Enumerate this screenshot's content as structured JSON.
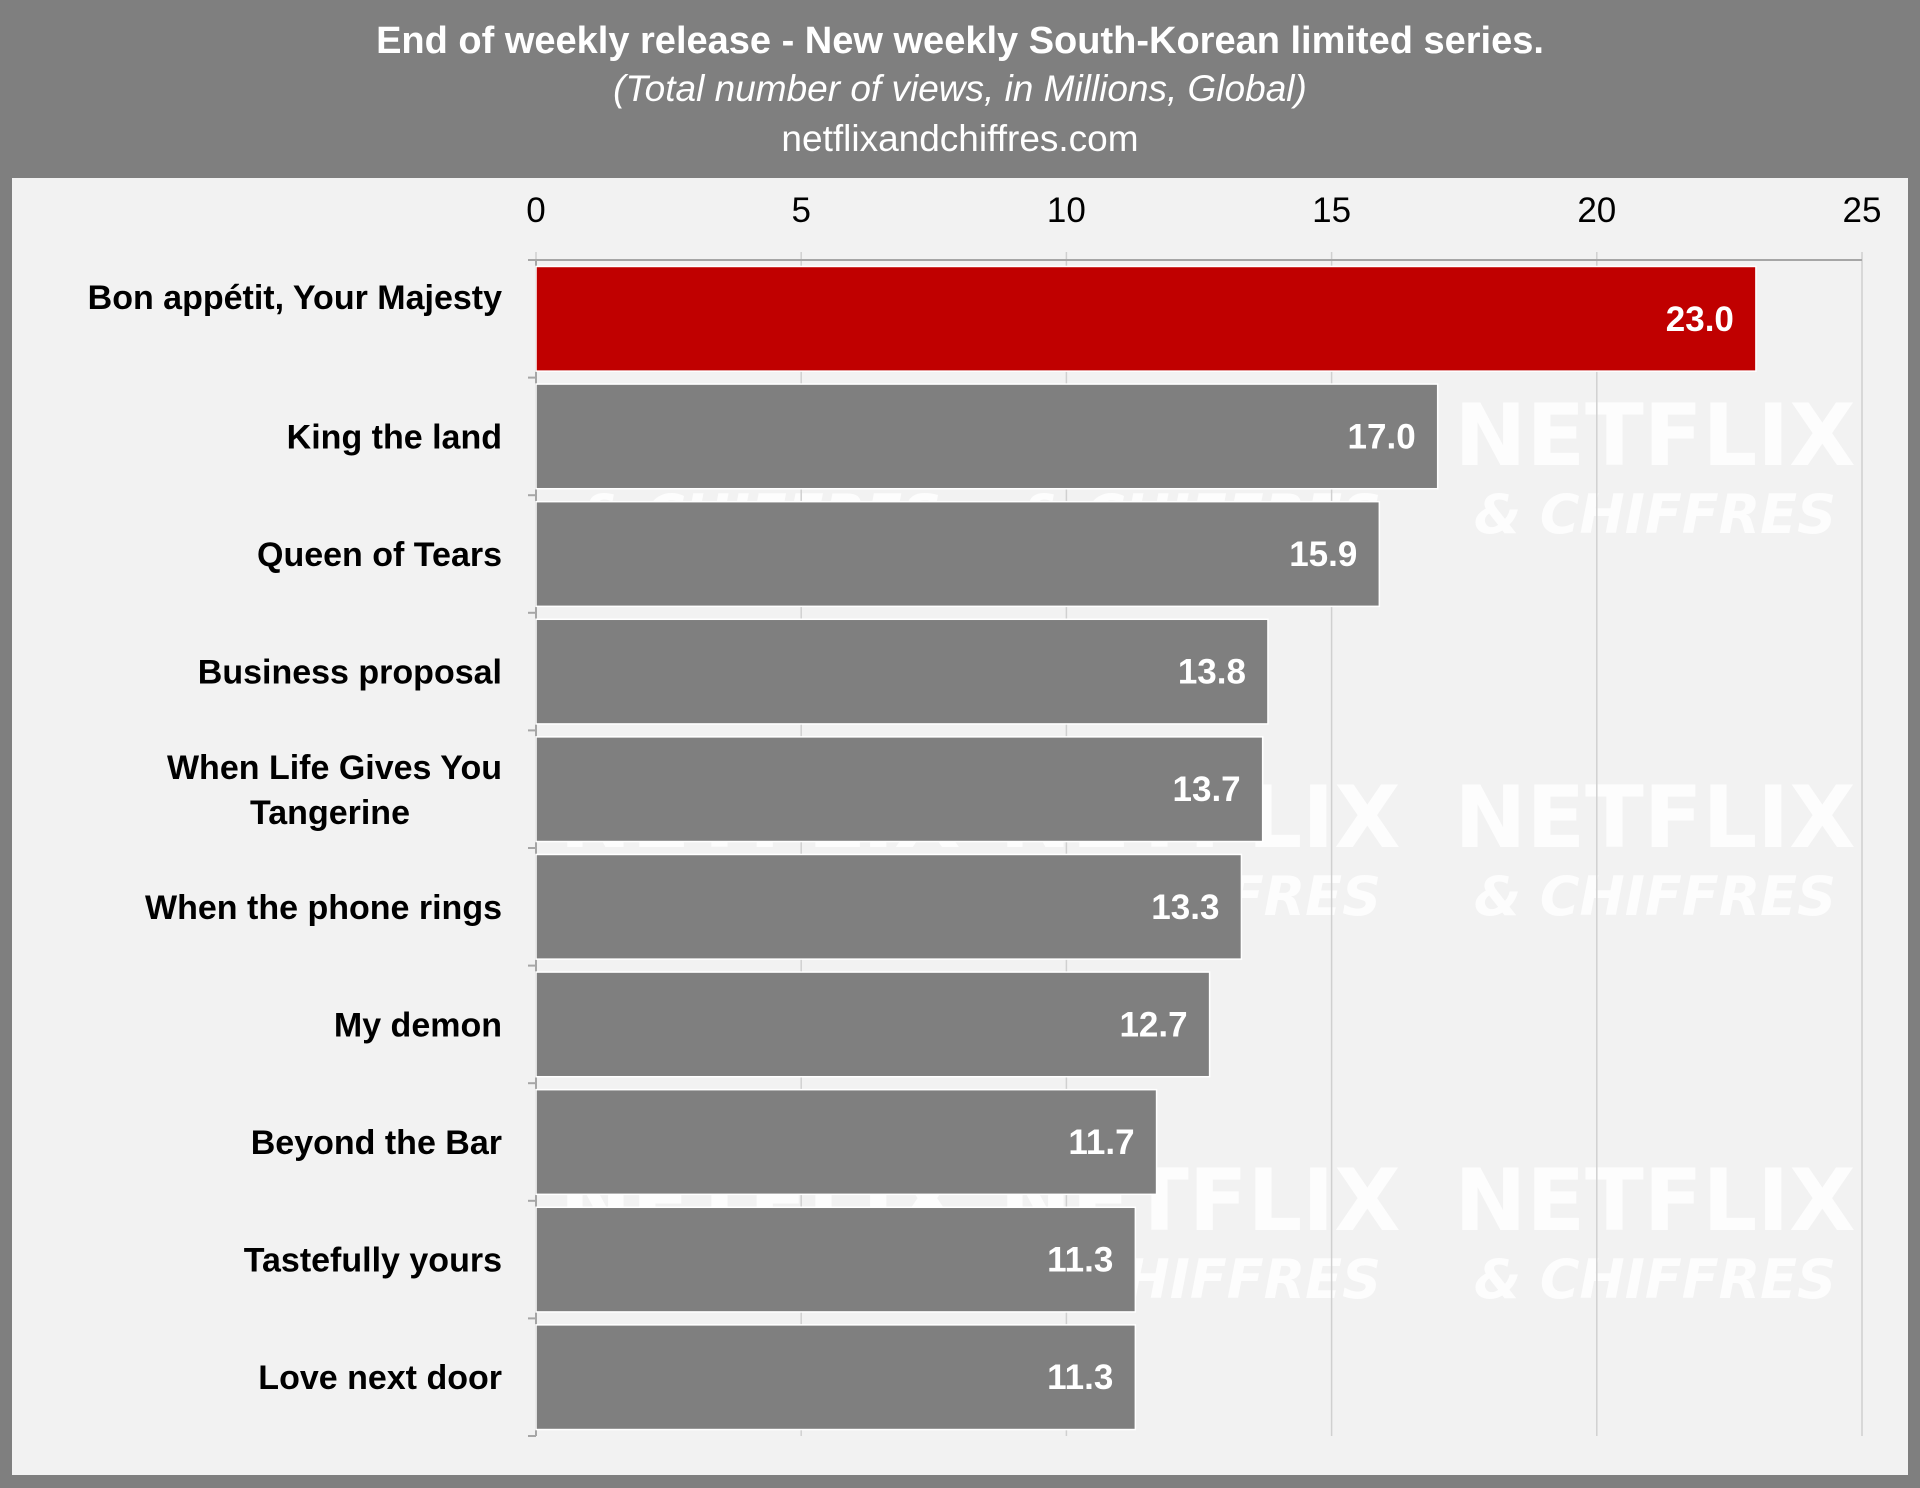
{
  "header": {
    "title": "End of weekly release - New weekly South-Korean limited series.",
    "subtitle": "(Total number of views, in Millions, Global)",
    "source": "netflixandchiffres.com"
  },
  "watermark": {
    "line1": "NETFLIX",
    "line2": "& CHIFFRES"
  },
  "colors": {
    "highlight": "#c00000",
    "bar": "#7f7f7f",
    "header": "#7f7f7f",
    "panel": "#f2f2f2"
  },
  "chart_data": {
    "type": "bar",
    "orientation": "horizontal",
    "title": "End of weekly release - New weekly South-Korean limited series.",
    "subtitle": "(Total number of views, in Millions, Global)",
    "xlabel": "",
    "ylabel": "",
    "xlim": [
      0,
      25
    ],
    "xticks": [
      0,
      5,
      10,
      15,
      20,
      25
    ],
    "grid": true,
    "axis_position": "top",
    "categories": [
      "Bon appétit, Your Majesty",
      "King the land",
      "Queen of Tears",
      "Business proposal",
      "When Life Gives You Tangerine",
      "When the phone rings",
      "My demon",
      "Beyond the Bar",
      "Tastefully yours",
      "Love next door"
    ],
    "values": [
      23.0,
      17.0,
      15.9,
      13.8,
      13.7,
      13.3,
      12.7,
      11.7,
      11.3,
      11.3
    ],
    "data_labels": [
      "23.0",
      "17.0",
      "15.9",
      "13.8",
      "13.7",
      "13.3",
      "12.7",
      "11.7",
      "11.3",
      "11.3"
    ],
    "highlight_index": 0
  }
}
